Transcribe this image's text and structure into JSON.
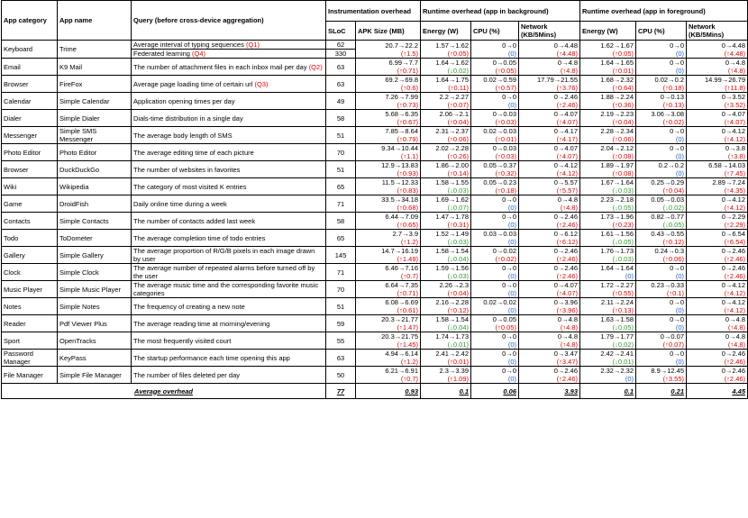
{
  "headers": {
    "app_category": "App category",
    "app_name": "App name",
    "query": "Query (before cross-device aggregation)",
    "instr": "Instrumentation overhead",
    "bg": "Runtime overhead (app in background)",
    "fg": "Runtime overhead (app in foreground)",
    "sloc": "SLoC",
    "apk": "APK Size (MB)",
    "energy": "Energy (W)",
    "cpu": "CPU (%)",
    "network": "Network (KB/5Mins)"
  },
  "rows": [
    {
      "cat": "Keyboard",
      "name": "Trime",
      "q": "Average interval of typing sequences ",
      "tag": "(Q1)",
      "sloc": "62",
      "apk": [
        "20.7→22.2",
        "(↑1.5)",
        "red"
      ],
      "be": [
        "1.57→1.62",
        "(↑0.05)",
        "red"
      ],
      "bc": [
        "0→0",
        "(0)",
        "blue"
      ],
      "bn": [
        "0→4.48",
        "(↑4.48)",
        "red"
      ],
      "fe": [
        "1.62→1.67",
        "(↑0.05)",
        "red"
      ],
      "fc": [
        "0→0",
        "(0)",
        "blue"
      ],
      "fn": [
        "0→4.48",
        "(↑4.48)",
        "red"
      ],
      "split": {
        "q2": "Federated learning ",
        "tag2": "(Q4)",
        "sloc2": "330"
      }
    },
    {
      "cat": "Email",
      "name": "K9 Mail",
      "q": "The number of attachment files in each inbox mail per day ",
      "tag": "(Q2)",
      "sloc": "63",
      "apk": [
        "6.99→7.7",
        "(↑0.71)",
        "red"
      ],
      "be": [
        "1.64→1.62",
        "(↓0.02)",
        "green"
      ],
      "bc": [
        "0→0.05",
        "(↑0.05)",
        "red"
      ],
      "bn": [
        "0→4.8",
        "(↑4.8)",
        "red"
      ],
      "fe": [
        "1.64→1.65",
        "(↑0.01)",
        "red"
      ],
      "fc": [
        "0→0",
        "(0)",
        "blue"
      ],
      "fn": [
        "0→4.8",
        "(↑4.8)",
        "red"
      ]
    },
    {
      "cat": "Browser",
      "name": "FireFox",
      "q": "Average page loading time of certain url ",
      "tag": "(Q3)",
      "sloc": "63",
      "apk": [
        "69.2→69.8",
        "(↑0.6)",
        "red"
      ],
      "be": [
        "1.64→1.75",
        "(↑0.11)",
        "red"
      ],
      "bc": [
        "0.02→0.59",
        "(↑0.57)",
        "red"
      ],
      "bn": [
        "17.79→21.55",
        "(↑3.76)",
        "red"
      ],
      "fe": [
        "1.68→2.32",
        "(↑0.64)",
        "red"
      ],
      "fc": [
        "0.02→0.2",
        "(↑0.18)",
        "red"
      ],
      "fn": [
        "14.99→26.79",
        "(↑11.8)",
        "red"
      ]
    },
    {
      "cat": "Calendar",
      "name": "Simple Calendar",
      "q": "Application opening times per day",
      "tag": "",
      "sloc": "49",
      "apk": [
        "7.26→7.99",
        "(↑0.73)",
        "red"
      ],
      "be": [
        "2.2→2.27",
        "(↑0.07)",
        "red"
      ],
      "bc": [
        "0→0",
        "(0)",
        "blue"
      ],
      "bn": [
        "0→2.46",
        "(↑2.46)",
        "red"
      ],
      "fe": [
        "1.88→2.24",
        "(↑0.36)",
        "red"
      ],
      "fc": [
        "0→0.13",
        "(↑0.13)",
        "red"
      ],
      "fn": [
        "0→3.52",
        "(↑3.52)",
        "red"
      ]
    },
    {
      "cat": "Dialer",
      "name": "Simple Dialer",
      "q": "Dials-time distribution in a single day",
      "tag": "",
      "sloc": "58",
      "apk": [
        "5.68→6.35",
        "(↑0.67)",
        "red"
      ],
      "be": [
        "2.06→2.1",
        "(↑0.04)",
        "red"
      ],
      "bc": [
        "0→0.03",
        "(↑0.03)",
        "red"
      ],
      "bn": [
        "0→4.07",
        "(↑4.07)",
        "red"
      ],
      "fe": [
        "2.19→2.23",
        "(↑0.04)",
        "red"
      ],
      "fc": [
        "3.06→3.08",
        "(↑0.02)",
        "red"
      ],
      "fn": [
        "0→4.07",
        "(↑4.07)",
        "red"
      ]
    },
    {
      "cat": "Messenger",
      "name": "Simple SMS Messenger",
      "q": "The average body length of SMS",
      "tag": "",
      "sloc": "51",
      "apk": [
        "7.85→8.64",
        "(↑0.79)",
        "red"
      ],
      "be": [
        "2.31→2.37",
        "(↑0.06)",
        "red"
      ],
      "bc": [
        "0.02→0.03",
        "(↑0.01)",
        "red"
      ],
      "bn": [
        "0→4.17",
        "(↑4.17)",
        "red"
      ],
      "fe": [
        "2.28→2.34",
        "(↑0.06)",
        "red"
      ],
      "fc": [
        "0→0",
        "(0)",
        "blue"
      ],
      "fn": [
        "0→4.12",
        "(↑4.12)",
        "red"
      ]
    },
    {
      "cat": "Photo Editor",
      "name": "Photo Editor",
      "q": "The average editing time of each picture",
      "tag": "",
      "sloc": "70",
      "apk": [
        "9.34→10.44",
        "(↑1.1)",
        "red"
      ],
      "be": [
        "2.02→2.28",
        "(↑0.26)",
        "red"
      ],
      "bc": [
        "0→0.03",
        "(↑0.03)",
        "red"
      ],
      "bn": [
        "0→4.07",
        "(↑4.07)",
        "red"
      ],
      "fe": [
        "2.04→2.12",
        "(↑0.08)",
        "red"
      ],
      "fc": [
        "0→0",
        "(0)",
        "blue"
      ],
      "fn": [
        "0→3.8",
        "(↑3.8)",
        "red"
      ]
    },
    {
      "cat": "Browser",
      "name": "DuckDuckGo",
      "q": "The number of websites in favorites",
      "tag": "",
      "sloc": "51",
      "apk": [
        "12.9→13.83",
        "(↑0.93)",
        "red"
      ],
      "be": [
        "1.86→2.00",
        "(↑0.14)",
        "red"
      ],
      "bc": [
        "0.05→0.37",
        "(↑0.32)",
        "red"
      ],
      "bn": [
        "0→4.12",
        "(↑4.12)",
        "red"
      ],
      "fe": [
        "1.89→1.97",
        "(↑0.08)",
        "red"
      ],
      "fc": [
        "0.2→0.2",
        "(0)",
        "blue"
      ],
      "fn": [
        "6.58→14.03",
        "(↑7.45)",
        "red"
      ]
    },
    {
      "cat": "Wiki",
      "name": "Wikipedia",
      "q": "The category of most visited K entries",
      "tag": "",
      "sloc": "65",
      "apk": [
        "11.5→12.33",
        "(↑0.83)",
        "red"
      ],
      "be": [
        "1.58→1.55",
        "(↓0.03)",
        "green"
      ],
      "bc": [
        "0.05→0.23",
        "(↑0.18)",
        "red"
      ],
      "bn": [
        "0→5.57",
        "(↑5.57)",
        "red"
      ],
      "fe": [
        "1.67→1.64",
        "(↓0.03)",
        "green"
      ],
      "fc": [
        "0.25→0.29",
        "(↑0.04)",
        "red"
      ],
      "fn": [
        "2.89→7.24",
        "(↑4.35)",
        "red"
      ]
    },
    {
      "cat": "Game",
      "name": "DroidFish",
      "q": "Daily online time during a week",
      "tag": "",
      "sloc": "71",
      "apk": [
        "33.5→34.18",
        "(↑0.68)",
        "red"
      ],
      "be": [
        "1.69→1.62",
        "(↓0.07)",
        "green"
      ],
      "bc": [
        "0→0",
        "(0)",
        "blue"
      ],
      "bn": [
        "0→4.8",
        "(↑4.8)",
        "red"
      ],
      "fe": [
        "2.23→2.18",
        "(↓0.05)",
        "green"
      ],
      "fc": [
        "0.05→0.03",
        "(↓0.02)",
        "green"
      ],
      "fn": [
        "0→4.12",
        "(↑4.12)",
        "red"
      ]
    },
    {
      "cat": "Contacts",
      "name": "Simple Contacts",
      "q": "The number of contacts added last week",
      "tag": "",
      "sloc": "58",
      "apk": [
        "6.44→7.09",
        "(↑0.65)",
        "red"
      ],
      "be": [
        "1.47→1.78",
        "(↑0.31)",
        "red"
      ],
      "bc": [
        "0→0",
        "(0)",
        "blue"
      ],
      "bn": [
        "0→2.46",
        "(↑2.46)",
        "red"
      ],
      "fe": [
        "1.73→1.96",
        "(↑0.23)",
        "red"
      ],
      "fc": [
        "0.82→0.77",
        "(↓0.05)",
        "green"
      ],
      "fn": [
        "0→2.29",
        "(↑2.29)",
        "red"
      ]
    },
    {
      "cat": "Todo",
      "name": "ToDometer",
      "q": "The average completion time of todo entries",
      "tag": "",
      "sloc": "65",
      "apk": [
        "2.7→3.9",
        "(↑1.2)",
        "red"
      ],
      "be": [
        "1.52→1.49",
        "(↓0.03)",
        "green"
      ],
      "bc": [
        "0.03→0.03",
        "(0)",
        "blue"
      ],
      "bn": [
        "0→6.12",
        "(↑6.12)",
        "red"
      ],
      "fe": [
        "1.61→1.56",
        "(↓0.05)",
        "green"
      ],
      "fc": [
        "0.43→0.55",
        "(↑0.12)",
        "red"
      ],
      "fn": [
        "0→6.54",
        "(↑6.54)",
        "red"
      ]
    },
    {
      "cat": "Gallery",
      "name": "Simple Gallery",
      "q": "The average proportion of R/G/B pixels in each image drawn by user",
      "tag": "",
      "sloc": "145",
      "apk": [
        "14.7→16.19",
        "(↑1.49)",
        "red"
      ],
      "be": [
        "1.58→1.54",
        "(↓0.04)",
        "green"
      ],
      "bc": [
        "0→0.02",
        "(↑0.02)",
        "red"
      ],
      "bn": [
        "0→2.46",
        "(↑2.46)",
        "red"
      ],
      "fe": [
        "1.76→1.73",
        "(↓0.03)",
        "green"
      ],
      "fc": [
        "0.24→0.3",
        "(↑0.06)",
        "red"
      ],
      "fn": [
        "0→2.46",
        "(↑2.46)",
        "red"
      ]
    },
    {
      "cat": "Clock",
      "name": "Simple Clock",
      "q": "The average number of repeated alarms before turned off by the user",
      "tag": "",
      "sloc": "71",
      "apk": [
        "6.46→7.16",
        "(↑0.7)",
        "red"
      ],
      "be": [
        "1.59→1.56",
        "(↓0.03)",
        "green"
      ],
      "bc": [
        "0→0",
        "(0)",
        "blue"
      ],
      "bn": [
        "0→2.46",
        "(↑2.46)",
        "red"
      ],
      "fe": [
        "1.64→1.64",
        "(0)",
        "blue"
      ],
      "fc": [
        "0→0",
        "(0)",
        "blue"
      ],
      "fn": [
        "0→2.46",
        "(↑2.46)",
        "red"
      ]
    },
    {
      "cat": "Music Player",
      "name": "Simple Music Player",
      "q": "The average music time and the corresponding favorite music categories",
      "tag": "",
      "sloc": "70",
      "apk": [
        "6.64→7.35",
        "(↑0.71)",
        "red"
      ],
      "be": [
        "2.26→2.3",
        "(↑0.04)",
        "red"
      ],
      "bc": [
        "0→0",
        "(0)",
        "blue"
      ],
      "bn": [
        "0→4.07",
        "(↑4.07)",
        "red"
      ],
      "fe": [
        "1.72→2.27",
        "(↑0.55)",
        "red"
      ],
      "fc": [
        "0.23→0.33",
        "(↑0.1)",
        "red"
      ],
      "fn": [
        "0→4.12",
        "(↑4.12)",
        "red"
      ]
    },
    {
      "cat": "Notes",
      "name": "Simple Notes",
      "q": "The frequency of creating a new note",
      "tag": "",
      "sloc": "51",
      "apk": [
        "6.08→6.69",
        "(↑0.61)",
        "red"
      ],
      "be": [
        "2.16→2.28",
        "(↑0.12)",
        "red"
      ],
      "bc": [
        "0.02→0.02",
        "(0)",
        "blue"
      ],
      "bn": [
        "0→3.96",
        "(↑3.96)",
        "red"
      ],
      "fe": [
        "2.11→2.24",
        "(↑0.13)",
        "red"
      ],
      "fc": [
        "0→0",
        "(0)",
        "blue"
      ],
      "fn": [
        "0→4.12",
        "(↑4.12)",
        "red"
      ]
    },
    {
      "cat": "Reader",
      "name": "Pdf Viewer Plus",
      "q": "The average reading time at morning/evening",
      "tag": "",
      "sloc": "59",
      "apk": [
        "20.3→21.77",
        "(↑1.47)",
        "red"
      ],
      "be": [
        "1.58→1.54",
        "(↓0.04)",
        "green"
      ],
      "bc": [
        "0→0.05",
        "(↑0.05)",
        "red"
      ],
      "bn": [
        "0→4.8",
        "(↑4.8)",
        "red"
      ],
      "fe": [
        "1.63→1.58",
        "(↓0.05)",
        "green"
      ],
      "fc": [
        "0→0",
        "(0)",
        "blue"
      ],
      "fn": [
        "0→4.8",
        "(↑4.8)",
        "red"
      ]
    },
    {
      "cat": "Sport",
      "name": "OpenTracks",
      "q": "The most frequently visited court",
      "tag": "",
      "sloc": "55",
      "apk": [
        "20.3→21.75",
        "(↑1.45)",
        "red"
      ],
      "be": [
        "1.74→1.73",
        "(↓0.01)",
        "green"
      ],
      "bc": [
        "0→0",
        "(0)",
        "blue"
      ],
      "bn": [
        "0→4.8",
        "(↑4.8)",
        "red"
      ],
      "fe": [
        "1.79→1.77",
        "(↓0.02)",
        "green"
      ],
      "fc": [
        "0→0.07",
        "(↑0.07)",
        "red"
      ],
      "fn": [
        "0→4.8",
        "(↑4.8)",
        "red"
      ]
    },
    {
      "cat": "Password Manager",
      "name": "KeyPass",
      "q": "The startup performance each time opening this app",
      "tag": "",
      "sloc": "63",
      "apk": [
        "4.94→6.14",
        "(↑1.2)",
        "red"
      ],
      "be": [
        "2.41→2.42",
        "(↑0.01)",
        "red"
      ],
      "bc": [
        "0→0",
        "(0)",
        "blue"
      ],
      "bn": [
        "0→3.47",
        "(↑3.47)",
        "red"
      ],
      "fe": [
        "2.42→2.41",
        "(↓0.01)",
        "green"
      ],
      "fc": [
        "0→0",
        "(0)",
        "blue"
      ],
      "fn": [
        "0→2.46",
        "(↑2.46)",
        "red"
      ]
    },
    {
      "cat": "File Manager",
      "name": "Simple File Manager",
      "q": "The number of files deleted per day",
      "tag": "",
      "sloc": "50",
      "apk": [
        "6.21→6.91",
        "(↑0.7)",
        "red"
      ],
      "be": [
        "2.3→3.39",
        "(↑1.09)",
        "red"
      ],
      "bc": [
        "0→0",
        "(0)",
        "blue"
      ],
      "bn": [
        "0→2.46",
        "(↑2.46)",
        "red"
      ],
      "fe": [
        "2.32→2.32",
        "(0)",
        "blue"
      ],
      "fc": [
        "8.9→12.45",
        "(↑3.55)",
        "red"
      ],
      "fn": [
        "0→2.46",
        "(↑2.46)",
        "red"
      ]
    }
  ],
  "footer": {
    "label": "Average overhead",
    "sloc": "77",
    "apk": "0.93",
    "be": "0.1",
    "bc": "0.06",
    "bn": "3.93",
    "fe": "0.1",
    "fc": "0.21",
    "fn": "4.45"
  }
}
